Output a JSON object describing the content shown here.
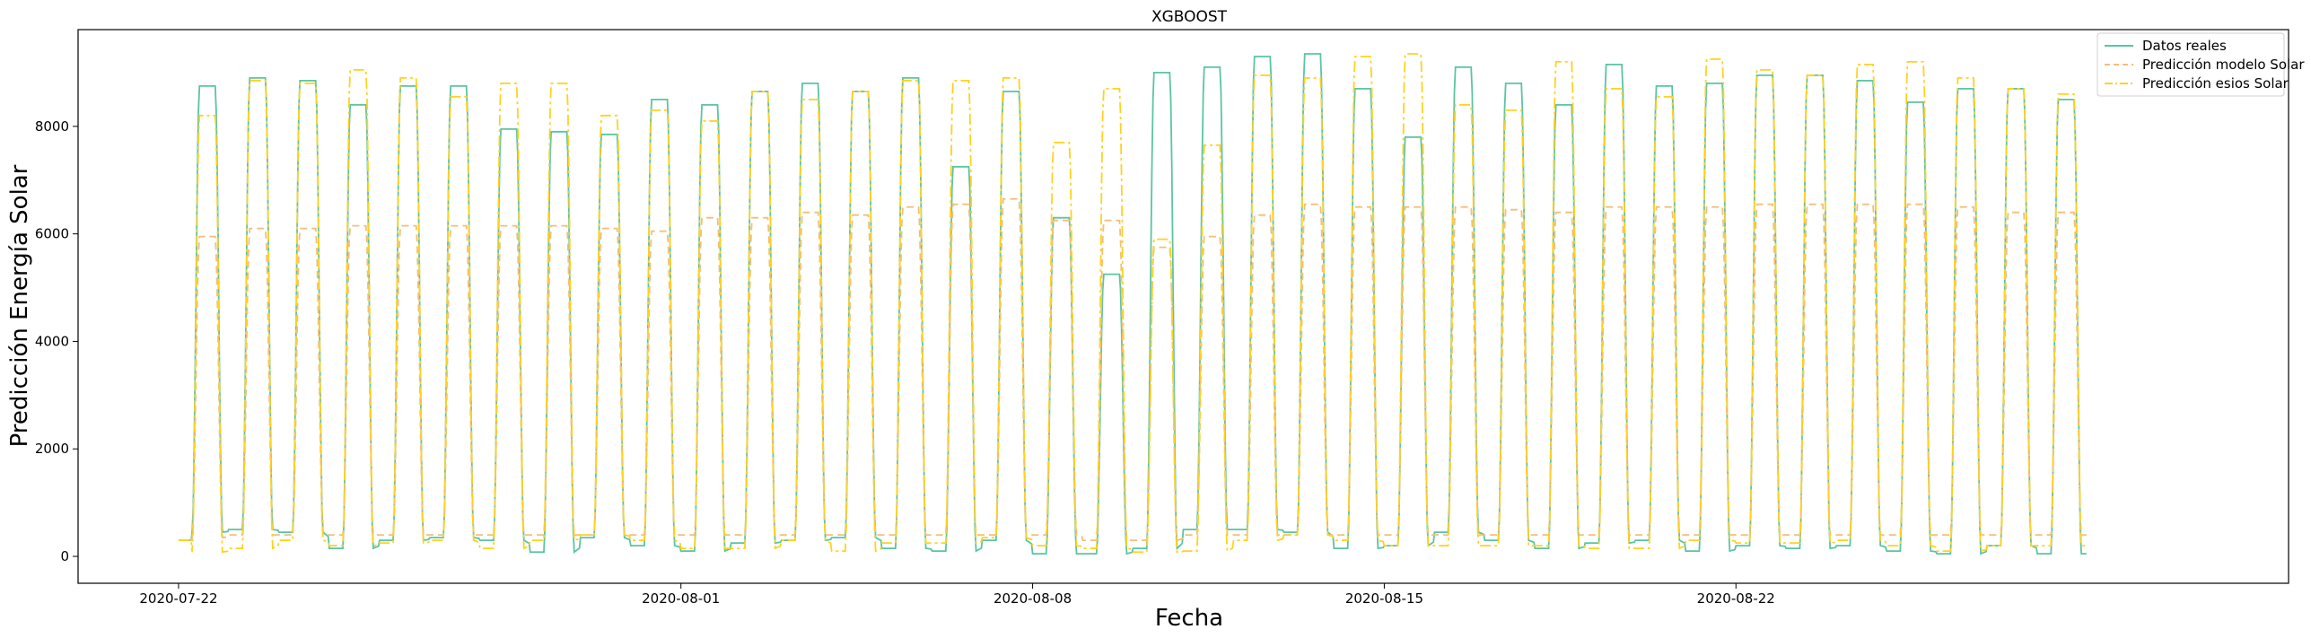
{
  "chart_data": {
    "type": "line",
    "title": "XGBOOST",
    "xlabel": "Fecha",
    "ylabel": "Predicción Energía Solar",
    "x_start": "2020-07-22",
    "x_end": "2020-08-28",
    "xlim": [
      "2020-07-20",
      "2020-09-02"
    ],
    "ylim": [
      -500,
      9800
    ],
    "x_ticks": [
      "2020-07-22",
      "2020-08-01",
      "2020-08-08",
      "2020-08-15",
      "2020-08-22"
    ],
    "y_ticks": [
      0,
      2000,
      4000,
      6000,
      8000
    ],
    "legend_position": "top-right",
    "grid": false,
    "series": [
      {
        "name": "Datos reales",
        "color": "#5cc4a3",
        "style": "solid",
        "daily_peak": [
          8750,
          8900,
          8850,
          8400,
          8750,
          8750,
          7950,
          7900,
          7850,
          8500,
          8400,
          8650,
          8800,
          8650,
          8900,
          7250,
          8650,
          6300,
          5250,
          9000,
          9100,
          9300,
          9350,
          8700,
          7800,
          9100,
          8800,
          8400,
          9150,
          8750,
          8800,
          8950,
          8950,
          8850,
          8450,
          8700,
          8700,
          8500
        ],
        "daily_min": [
          450,
          500,
          450,
          150,
          300,
          350,
          300,
          80,
          350,
          200,
          100,
          250,
          300,
          350,
          150,
          100,
          300,
          50,
          50,
          150,
          500,
          500,
          450,
          150,
          200,
          450,
          300,
          150,
          250,
          300,
          100,
          200,
          150,
          200,
          100,
          50,
          200,
          50
        ]
      },
      {
        "name": "Predicción modelo Solar",
        "color": "#f2bf7a",
        "style": "dashed",
        "daily_peak": [
          5950,
          6100,
          6100,
          6150,
          6150,
          6150,
          6150,
          6150,
          6100,
          6050,
          6300,
          6300,
          6400,
          6350,
          6500,
          6550,
          6650,
          6250,
          6250,
          5750,
          5950,
          6350,
          6550,
          6500,
          6500,
          6500,
          6450,
          6400,
          6500,
          6500,
          6500,
          6550,
          6550,
          6550,
          6550,
          6500,
          6400,
          6400
        ],
        "daily_min": [
          350,
          400,
          400,
          400,
          400,
          400,
          400,
          400,
          400,
          400,
          400,
          400,
          400,
          400,
          400,
          400,
          400,
          400,
          300,
          300,
          400,
          400,
          400,
          400,
          400,
          400,
          400,
          400,
          400,
          400,
          400,
          400,
          400,
          400,
          400,
          400,
          400,
          400
        ]
      },
      {
        "name": "Predicción esios Solar",
        "color": "#ffd21f",
        "style": "dashdot",
        "daily_peak": [
          8200,
          8850,
          8800,
          9050,
          8900,
          8550,
          8800,
          8800,
          8200,
          8300,
          8100,
          8650,
          8500,
          8650,
          8850,
          8850,
          8900,
          7700,
          8700,
          5900,
          7650,
          8950,
          8900,
          9300,
          9350,
          8400,
          8300,
          9200,
          8700,
          8550,
          9250,
          9050,
          8950,
          9150,
          9200,
          8900,
          8700,
          8600
        ],
        "daily_min": [
          80,
          150,
          300,
          200,
          250,
          300,
          150,
          300,
          400,
          300,
          150,
          150,
          300,
          100,
          250,
          250,
          350,
          200,
          150,
          80,
          100,
          300,
          400,
          300,
          200,
          200,
          200,
          200,
          150,
          150,
          300,
          250,
          250,
          300,
          200,
          100,
          200,
          200
        ]
      }
    ]
  }
}
